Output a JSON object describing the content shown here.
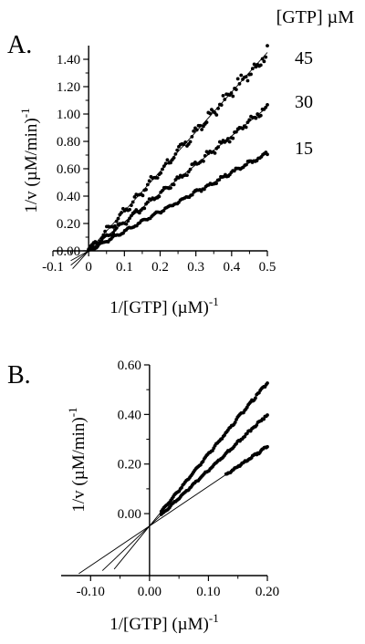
{
  "figure": {
    "legend_title": "[GTP] µM"
  },
  "chart_data": [
    {
      "panel": "A.",
      "type": "scatter",
      "xlabel": "1/[GTP] (µM)",
      "xlabel_sup": "-1",
      "ylabel": "1/v (µM/min)",
      "ylabel_sup": "-1",
      "xlim": [
        -0.1,
        0.5
      ],
      "ylim": [
        0,
        1.5
      ],
      "xticks": [
        "-0.1",
        "0",
        "0.1",
        "0.2",
        "0.3",
        "0.4",
        "0.5"
      ],
      "xtick_values": [
        -0.1,
        0,
        0.1,
        0.2,
        0.3,
        0.4,
        0.5
      ],
      "yticks": [
        "0.00",
        "0.20",
        "0.40",
        "0.60",
        "0.80",
        "1.00",
        "1.20",
        "1.40"
      ],
      "ytick_values": [
        0,
        0.2,
        0.4,
        0.6,
        0.8,
        1.0,
        1.2,
        1.4
      ],
      "grid": false,
      "series": [
        {
          "name": "45",
          "x_range": [
            0.0,
            0.5
          ],
          "fit": {
            "slope": 2.9,
            "intercept": 0.0
          },
          "noise": 0.04,
          "points": 110,
          "fit_x_start": -0.045
        },
        {
          "name": "30",
          "x_range": [
            0.0,
            0.5
          ],
          "fit": {
            "slope": 2.1,
            "intercept": 0.0
          },
          "noise": 0.03,
          "points": 110,
          "fit_x_start": -0.05
        },
        {
          "name": "15",
          "x_range": [
            0.0,
            0.5
          ],
          "fit": {
            "slope": 1.43,
            "intercept": 0.0
          },
          "noise": 0.015,
          "points": 120,
          "fit_x_start": -0.05
        }
      ]
    },
    {
      "panel": "B.",
      "type": "scatter",
      "xlabel": "1/[GTP] (µM)",
      "xlabel_sup": "-1",
      "ylabel": "1/v (µM/min)",
      "ylabel_sup": "-1",
      "xlim": [
        -0.15,
        0.2
      ],
      "ylim": [
        -0.25,
        0.6
      ],
      "xticks": [
        "-0.10",
        "0.00",
        "0.10",
        "0.20"
      ],
      "xtick_values": [
        -0.1,
        0.0,
        0.1,
        0.2
      ],
      "yticks": [
        "0.00",
        "0.20",
        "0.40",
        "0.60"
      ],
      "ytick_values": [
        0,
        0.2,
        0.4,
        0.6
      ],
      "grid": false,
      "series": [
        {
          "name": "45",
          "x_range": [
            0.02,
            0.2
          ],
          "fit": {
            "slope": 2.9,
            "intercept": -0.05
          },
          "noise": 0.006,
          "points": 90,
          "fit_x_start": -0.06
        },
        {
          "name": "30",
          "x_range": [
            0.02,
            0.2
          ],
          "fit": {
            "slope": 2.25,
            "intercept": -0.05
          },
          "noise": 0.005,
          "points": 90,
          "fit_x_start": -0.08
        },
        {
          "name": "15",
          "x_range": [
            0.13,
            0.2
          ],
          "fit": {
            "slope": 1.6,
            "intercept": -0.05
          },
          "noise": 0.004,
          "points": 40,
          "fit_x_start": -0.12
        }
      ]
    }
  ]
}
